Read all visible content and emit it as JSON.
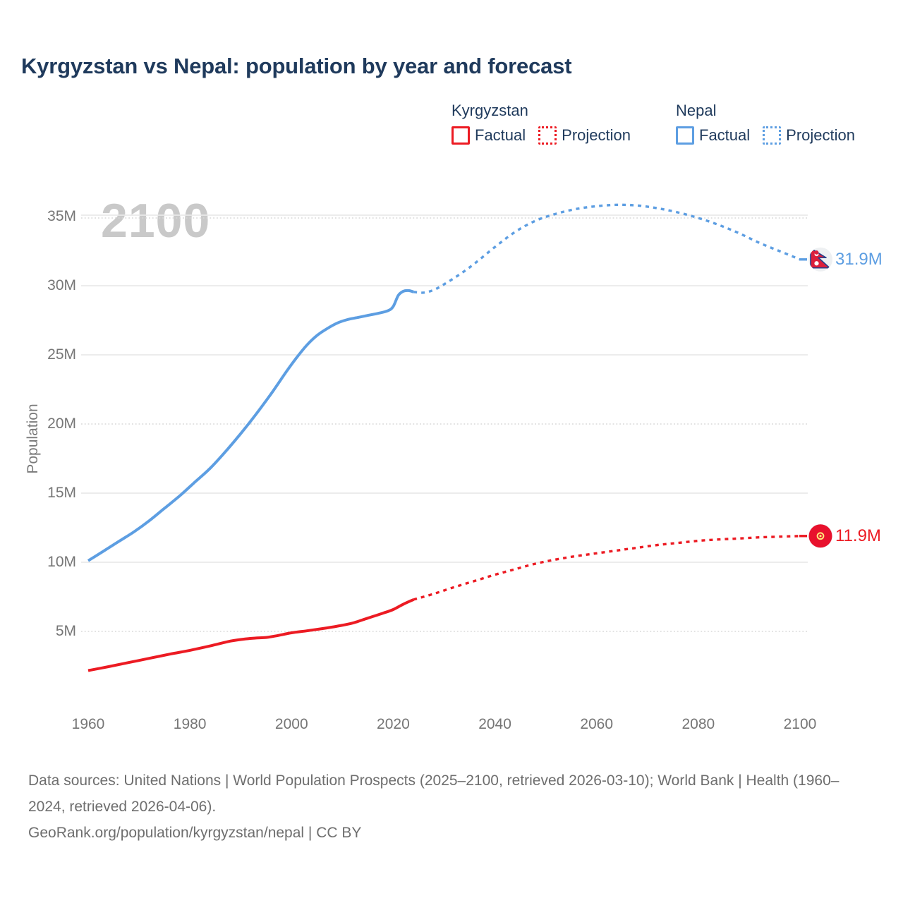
{
  "title": "Kyrgyzstan vs Nepal: population by year and forecast",
  "watermark": "2100",
  "legend": {
    "groups": [
      {
        "name": "Kyrgyzstan",
        "color": "#ec1b23",
        "items": [
          {
            "label": "Factual",
            "style": "solid"
          },
          {
            "label": "Projection",
            "style": "dotted"
          }
        ]
      },
      {
        "name": "Nepal",
        "color": "#5d9ee2",
        "items": [
          {
            "label": "Factual",
            "style": "solid"
          },
          {
            "label": "Projection",
            "style": "dotted"
          }
        ]
      }
    ]
  },
  "sources": {
    "line1": "Data sources: United Nations | World Population Prospects (2025–2100, retrieved 2026-03-10); World Bank | Health (1960–2024, retrieved 2026-04-06).",
    "line2": "GeoRank.org/population/kyrgyzstan/nepal | CC BY"
  },
  "chart_data": {
    "type": "line",
    "title": "Kyrgyzstan vs Nepal: population by year and forecast",
    "xlabel": "",
    "ylabel": "Population",
    "unit": "millions of people",
    "xlim": [
      1958,
      2114
    ],
    "ylim": [
      1.5,
      37.5
    ],
    "grid": "horizontal",
    "legend_position": "top-right",
    "xticks": [
      1960,
      1980,
      2000,
      2020,
      2040,
      2060,
      2080,
      2100
    ],
    "yticks": [
      {
        "value": 5,
        "label": "5M",
        "grid": "dotted"
      },
      {
        "value": 10,
        "label": "10M",
        "grid": "solid"
      },
      {
        "value": 15,
        "label": "15M",
        "grid": "solid"
      },
      {
        "value": 20,
        "label": "20M",
        "grid": "dotted"
      },
      {
        "value": 25,
        "label": "25M",
        "grid": "solid"
      },
      {
        "value": 30,
        "label": "30M",
        "grid": "solid"
      },
      {
        "value": 35,
        "label": "35M",
        "grid": "double"
      }
    ],
    "colors": {
      "kyrgyzstan": "#ec1b23",
      "nepal": "#5d9ee2"
    },
    "series": [
      {
        "name": "Nepal Factual",
        "country": "Nepal",
        "color": "#5d9ee2",
        "style": "solid",
        "points": [
          [
            1960,
            10.11
          ],
          [
            1963,
            10.8
          ],
          [
            1966,
            11.5
          ],
          [
            1969,
            12.2
          ],
          [
            1972,
            13.0
          ],
          [
            1975,
            13.9
          ],
          [
            1978,
            14.8
          ],
          [
            1981,
            15.8
          ],
          [
            1984,
            16.8
          ],
          [
            1987,
            18.0
          ],
          [
            1990,
            19.3
          ],
          [
            1993,
            20.7
          ],
          [
            1996,
            22.2
          ],
          [
            1999,
            23.8
          ],
          [
            2001,
            24.8
          ],
          [
            2003,
            25.7
          ],
          [
            2005,
            26.4
          ],
          [
            2007,
            26.9
          ],
          [
            2009,
            27.3
          ],
          [
            2011,
            27.55
          ],
          [
            2013,
            27.7
          ],
          [
            2015,
            27.85
          ],
          [
            2017,
            28.0
          ],
          [
            2019,
            28.2
          ],
          [
            2020,
            28.5
          ],
          [
            2021,
            29.3
          ],
          [
            2022,
            29.6
          ],
          [
            2023,
            29.65
          ],
          [
            2024,
            29.55
          ]
        ]
      },
      {
        "name": "Nepal Projection",
        "country": "Nepal",
        "color": "#5d9ee2",
        "style": "dotted",
        "points": [
          [
            2024,
            29.55
          ],
          [
            2026,
            29.5
          ],
          [
            2028,
            29.7
          ],
          [
            2030,
            30.1
          ],
          [
            2033,
            30.8
          ],
          [
            2036,
            31.6
          ],
          [
            2040,
            32.8
          ],
          [
            2044,
            33.9
          ],
          [
            2048,
            34.7
          ],
          [
            2052,
            35.2
          ],
          [
            2056,
            35.55
          ],
          [
            2060,
            35.75
          ],
          [
            2064,
            35.85
          ],
          [
            2068,
            35.8
          ],
          [
            2072,
            35.6
          ],
          [
            2076,
            35.3
          ],
          [
            2080,
            34.9
          ],
          [
            2084,
            34.4
          ],
          [
            2088,
            33.8
          ],
          [
            2092,
            33.1
          ],
          [
            2096,
            32.5
          ],
          [
            2100,
            31.9
          ]
        ]
      },
      {
        "name": "Kyrgyzstan Factual",
        "country": "Kyrgyzstan",
        "color": "#ec1b23",
        "style": "solid",
        "points": [
          [
            1960,
            2.17
          ],
          [
            1964,
            2.45
          ],
          [
            1968,
            2.75
          ],
          [
            1972,
            3.05
          ],
          [
            1976,
            3.35
          ],
          [
            1980,
            3.63
          ],
          [
            1984,
            3.95
          ],
          [
            1988,
            4.3
          ],
          [
            1991,
            4.46
          ],
          [
            1993,
            4.52
          ],
          [
            1995,
            4.56
          ],
          [
            1997,
            4.68
          ],
          [
            2000,
            4.9
          ],
          [
            2003,
            5.04
          ],
          [
            2006,
            5.2
          ],
          [
            2009,
            5.38
          ],
          [
            2012,
            5.6
          ],
          [
            2015,
            5.96
          ],
          [
            2018,
            6.32
          ],
          [
            2020,
            6.58
          ],
          [
            2022,
            6.97
          ],
          [
            2024,
            7.3
          ]
        ]
      },
      {
        "name": "Kyrgyzstan Projection",
        "country": "Kyrgyzstan",
        "color": "#ec1b23",
        "style": "dotted",
        "points": [
          [
            2024,
            7.3
          ],
          [
            2028,
            7.72
          ],
          [
            2032,
            8.2
          ],
          [
            2036,
            8.65
          ],
          [
            2040,
            9.1
          ],
          [
            2044,
            9.5
          ],
          [
            2048,
            9.9
          ],
          [
            2052,
            10.2
          ],
          [
            2056,
            10.45
          ],
          [
            2060,
            10.65
          ],
          [
            2064,
            10.85
          ],
          [
            2068,
            11.05
          ],
          [
            2072,
            11.25
          ],
          [
            2076,
            11.4
          ],
          [
            2080,
            11.55
          ],
          [
            2084,
            11.65
          ],
          [
            2088,
            11.72
          ],
          [
            2092,
            11.8
          ],
          [
            2096,
            11.85
          ],
          [
            2100,
            11.9
          ]
        ]
      }
    ],
    "end_markers": [
      {
        "country": "Nepal",
        "year": 2100,
        "value": 31.9,
        "label": "31.9M",
        "color": "#5d9ee2",
        "flag": "nepal"
      },
      {
        "country": "Kyrgyzstan",
        "year": 2100,
        "value": 11.9,
        "label": "11.9M",
        "color": "#ec1b23",
        "flag": "kyrgyzstan"
      }
    ]
  }
}
